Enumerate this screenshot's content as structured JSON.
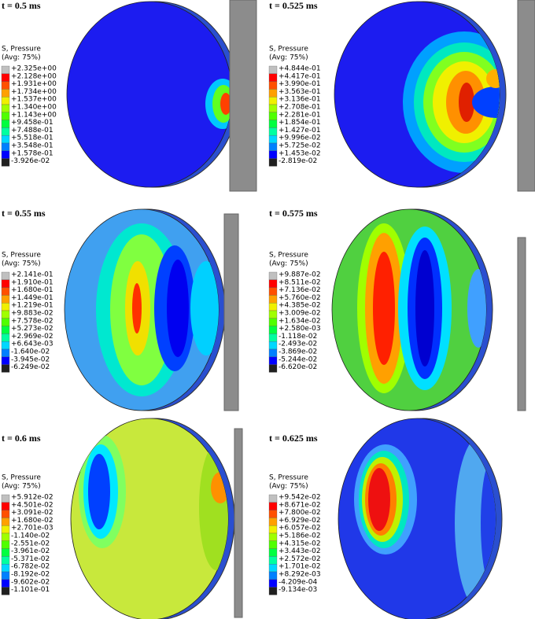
{
  "panels": [
    {
      "time": "t = 0.5 ms",
      "legend": {
        "title": "S, Pressure",
        "subtitle": "(Avg: 75%)",
        "values": [
          "+2.325e+00",
          "+2.128e+00",
          "+1.931e+00",
          "+1.734e+00",
          "+1.537e+00",
          "+1.340e+00",
          "+1.143e+00",
          "+9.458e-01",
          "+7.488e-01",
          "+5.518e-01",
          "+3.548e-01",
          "+1.578e-01",
          "-3.926e-02"
        ]
      }
    },
    {
      "time": "t = 0.525 ms",
      "legend": {
        "title": "S, Pressure",
        "subtitle": "(Avg: 75%)",
        "values": [
          "+4.844e-01",
          "+4.417e-01",
          "+3.990e-01",
          "+3.563e-01",
          "+3.136e-01",
          "+2.708e-01",
          "+2.281e-01",
          "+1.854e-01",
          "+1.427e-01",
          "+9.996e-02",
          "+5.725e-02",
          "+1.453e-02",
          "-2.819e-02"
        ]
      }
    },
    {
      "time": "t = 0.55 ms",
      "legend": {
        "title": "S, Pressure",
        "subtitle": "(Avg: 75%)",
        "values": [
          "+2.141e-01",
          "+1.910e-01",
          "+1.680e-01",
          "+1.449e-01",
          "+1.219e-01",
          "+9.883e-02",
          "+7.578e-02",
          "+5.273e-02",
          "+2.969e-02",
          "+6.643e-03",
          "-1.640e-02",
          "-3.945e-02",
          "-6.249e-02"
        ]
      }
    },
    {
      "time": "t = 0.575 ms",
      "legend": {
        "title": "S, Pressure",
        "subtitle": "(Avg: 75%)",
        "values": [
          "+9.887e-02",
          "+8.511e-02",
          "+7.136e-02",
          "+5.760e-02",
          "+4.385e-02",
          "+3.009e-02",
          "+1.634e-02",
          "+2.580e-03",
          "-1.118e-02",
          "-2.493e-02",
          "-3.869e-02",
          "-5.244e-02",
          "-6.620e-02"
        ]
      }
    },
    {
      "time": "t = 0.6 ms",
      "legend": {
        "title": "S, Pressure",
        "subtitle": "(Avg: 75%)",
        "values": [
          "+5.912e-02",
          "+4.501e-02",
          "+3.091e-02",
          "+1.680e-02",
          "+2.701e-03",
          "-1.140e-02",
          "-2.551e-02",
          "-3.961e-02",
          "-5.371e-02",
          "-6.782e-02",
          "-8.192e-02",
          "-9.602e-02",
          "-1.101e-01"
        ]
      }
    },
    {
      "time": "t = 0.625 ms",
      "legend": {
        "title": "S, Pressure",
        "subtitle": "(Avg: 75%)",
        "values": [
          "+9.542e-02",
          "+8.671e-02",
          "+7.800e-02",
          "+6.929e-02",
          "+6.057e-02",
          "+5.186e-02",
          "+4.315e-02",
          "+3.443e-02",
          "+2.572e-02",
          "+1.701e-02",
          "+8.292e-03",
          "-4.209e-04",
          "-9.134e-03"
        ]
      }
    }
  ]
}
